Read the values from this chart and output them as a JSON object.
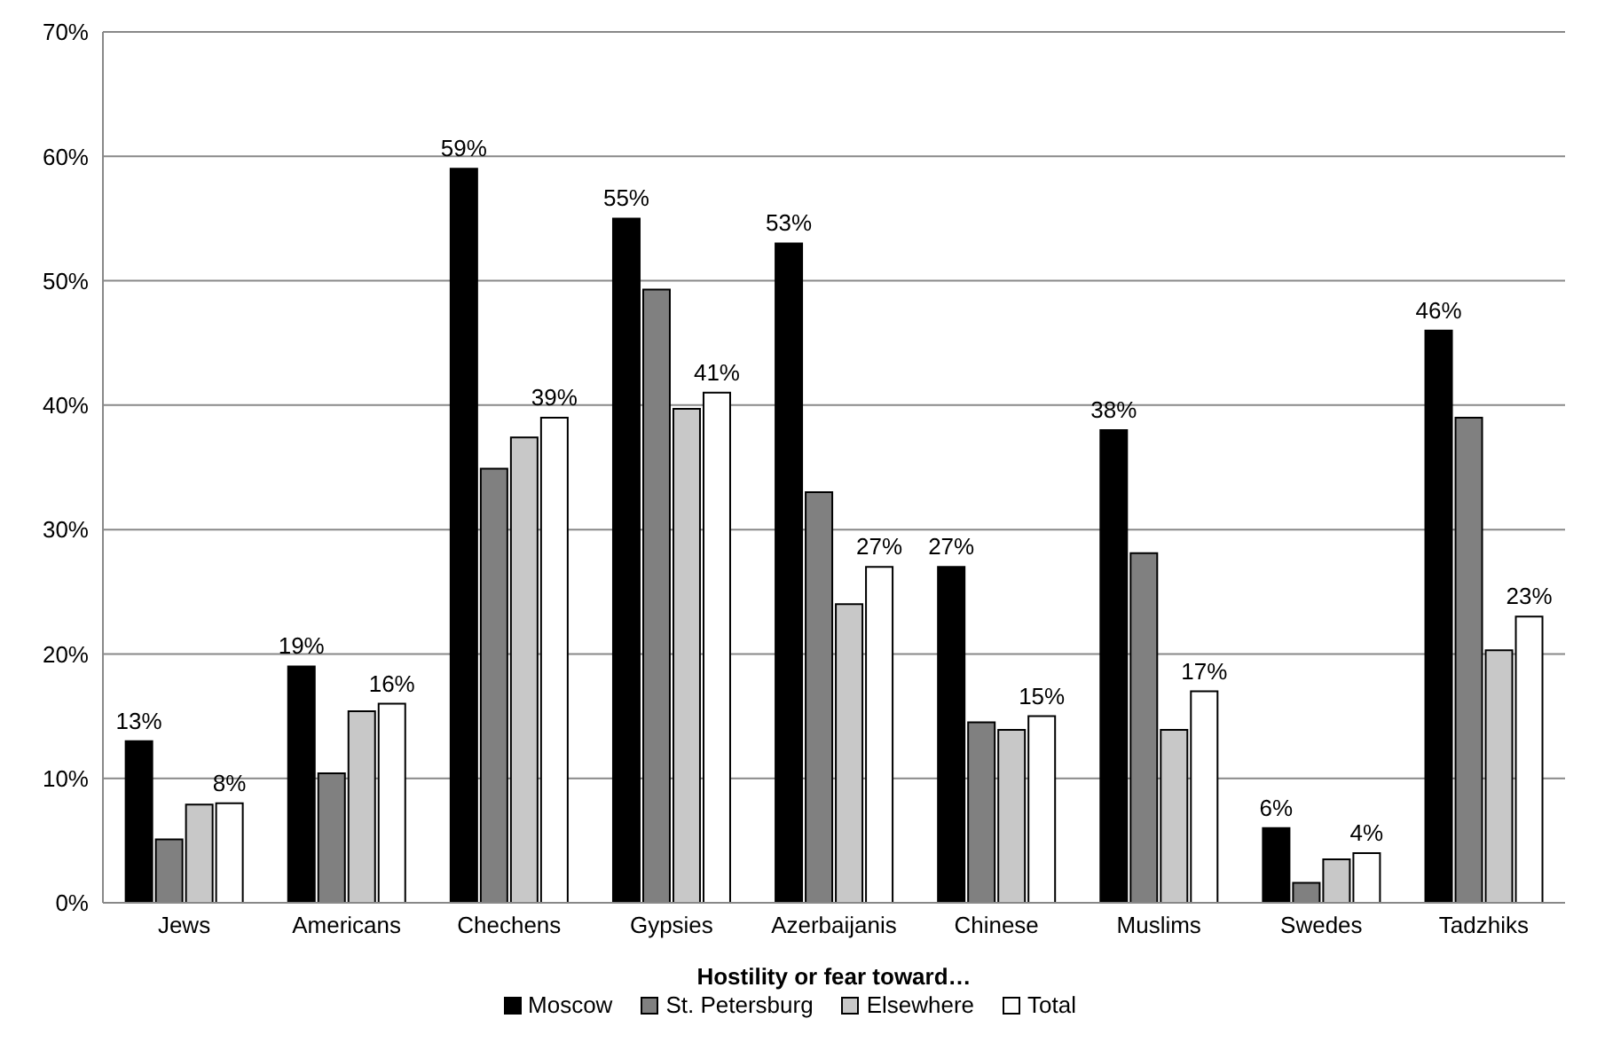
{
  "chart_data": {
    "type": "bar",
    "xlabel": "Hostility  or fear toward…",
    "categories": [
      "Jews",
      "Americans",
      "Chechens",
      "Gypsies",
      "Azerbaijanis",
      "Chinese",
      "Muslims",
      "Swedes",
      "Tadzhiks"
    ],
    "series": [
      {
        "name": "Moscow",
        "color": "#000000",
        "values": [
          13,
          19,
          59,
          55,
          53,
          27,
          38,
          6,
          46
        ],
        "value_labels": [
          "13%",
          "19%",
          "59%",
          "55%",
          "53%",
          "27%",
          "38%",
          "6%",
          "46%"
        ]
      },
      {
        "name": "St. Petersburg",
        "color": "#808080",
        "values": [
          5.1,
          10.4,
          34.9,
          49.3,
          33,
          14.5,
          28.1,
          1.6,
          39
        ]
      },
      {
        "name": "Elsewhere",
        "color": "#c8c8c8",
        "values": [
          7.9,
          15.4,
          37.4,
          39.7,
          24,
          13.9,
          13.9,
          3.5,
          20.3
        ]
      },
      {
        "name": "Total",
        "color": "#ffffff",
        "values": [
          8,
          16,
          39,
          41,
          27,
          15,
          17,
          4,
          23
        ],
        "value_labels": [
          "8%",
          "16%",
          "39%",
          "41%",
          "27%",
          "15%",
          "17%",
          "4%",
          "23%"
        ]
      }
    ],
    "ylim": [
      0,
      70
    ],
    "yticks": [
      {
        "value": 0,
        "label": "0%"
      },
      {
        "value": 10,
        "label": "10%"
      },
      {
        "value": 20,
        "label": "20%"
      },
      {
        "value": 30,
        "label": "30%"
      },
      {
        "value": 40,
        "label": "40%"
      },
      {
        "value": 50,
        "label": "50%"
      },
      {
        "value": 60,
        "label": "60%"
      },
      {
        "value": 70,
        "label": "70%"
      }
    ],
    "grid": "y",
    "legend": "bottom"
  }
}
